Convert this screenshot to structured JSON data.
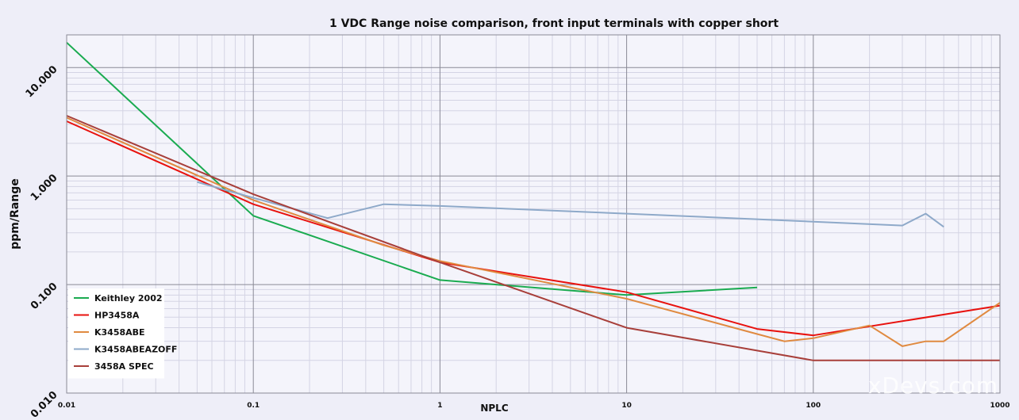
{
  "chart_data": {
    "type": "line",
    "title": "1 VDC Range noise comparison, front input terminals with copper short",
    "xlabel": "NPLC",
    "ylabel": "ppm/Range",
    "x_scale": "log",
    "y_scale": "log",
    "xlim": [
      0.01,
      1000
    ],
    "ylim": [
      0.01,
      20
    ],
    "x_ticks": [
      0.01,
      0.1,
      1,
      10,
      100,
      1000
    ],
    "x_tick_labels": [
      "0.01",
      "0.1",
      "1",
      "10",
      "100",
      "1000"
    ],
    "y_ticks": [
      0.01,
      0.1,
      1,
      10
    ],
    "y_tick_labels": [
      "0.010",
      "0.100",
      "1.000",
      "10.000"
    ],
    "grid": true,
    "legend_position": "bottom-left",
    "series": [
      {
        "name": "Keithley 2002",
        "color": "#1aab50",
        "points": [
          [
            0.01,
            17.0
          ],
          [
            0.1,
            0.43
          ],
          [
            1,
            0.11
          ],
          [
            10,
            0.08
          ],
          [
            50,
            0.094
          ]
        ]
      },
      {
        "name": "HP3458A",
        "color": "#e8120e",
        "points": [
          [
            0.01,
            3.2
          ],
          [
            0.1,
            0.55
          ],
          [
            1,
            0.16
          ],
          [
            10,
            0.085
          ],
          [
            50,
            0.039
          ],
          [
            100,
            0.034
          ],
          [
            1000,
            0.064
          ]
        ]
      },
      {
        "name": "K3458ABE",
        "color": "#e08a40",
        "points": [
          [
            0.01,
            3.45
          ],
          [
            0.1,
            0.6
          ],
          [
            0.5,
            0.23
          ],
          [
            1,
            0.165
          ],
          [
            10,
            0.074
          ],
          [
            50,
            0.035
          ],
          [
            70,
            0.03
          ],
          [
            100,
            0.032
          ],
          [
            200,
            0.042
          ],
          [
            300,
            0.027
          ],
          [
            400,
            0.03
          ],
          [
            500,
            0.03
          ],
          [
            1000,
            0.068
          ]
        ]
      },
      {
        "name": "K3458ABEAZOFF",
        "color": "#8ea9c9",
        "points": [
          [
            0.05,
            0.88
          ],
          [
            0.1,
            0.63
          ],
          [
            0.25,
            0.41
          ],
          [
            0.5,
            0.55
          ],
          [
            1,
            0.53
          ],
          [
            10,
            0.45
          ],
          [
            100,
            0.38
          ],
          [
            300,
            0.35
          ],
          [
            400,
            0.45
          ],
          [
            500,
            0.34
          ]
        ]
      },
      {
        "name": "3458A SPEC",
        "color": "#a83f3a",
        "points": [
          [
            0.01,
            3.6
          ],
          [
            0.1,
            0.68
          ],
          [
            1,
            0.16
          ],
          [
            10,
            0.04
          ],
          [
            100,
            0.02
          ],
          [
            1000,
            0.02
          ]
        ]
      }
    ]
  },
  "watermark": "xDevs.com"
}
